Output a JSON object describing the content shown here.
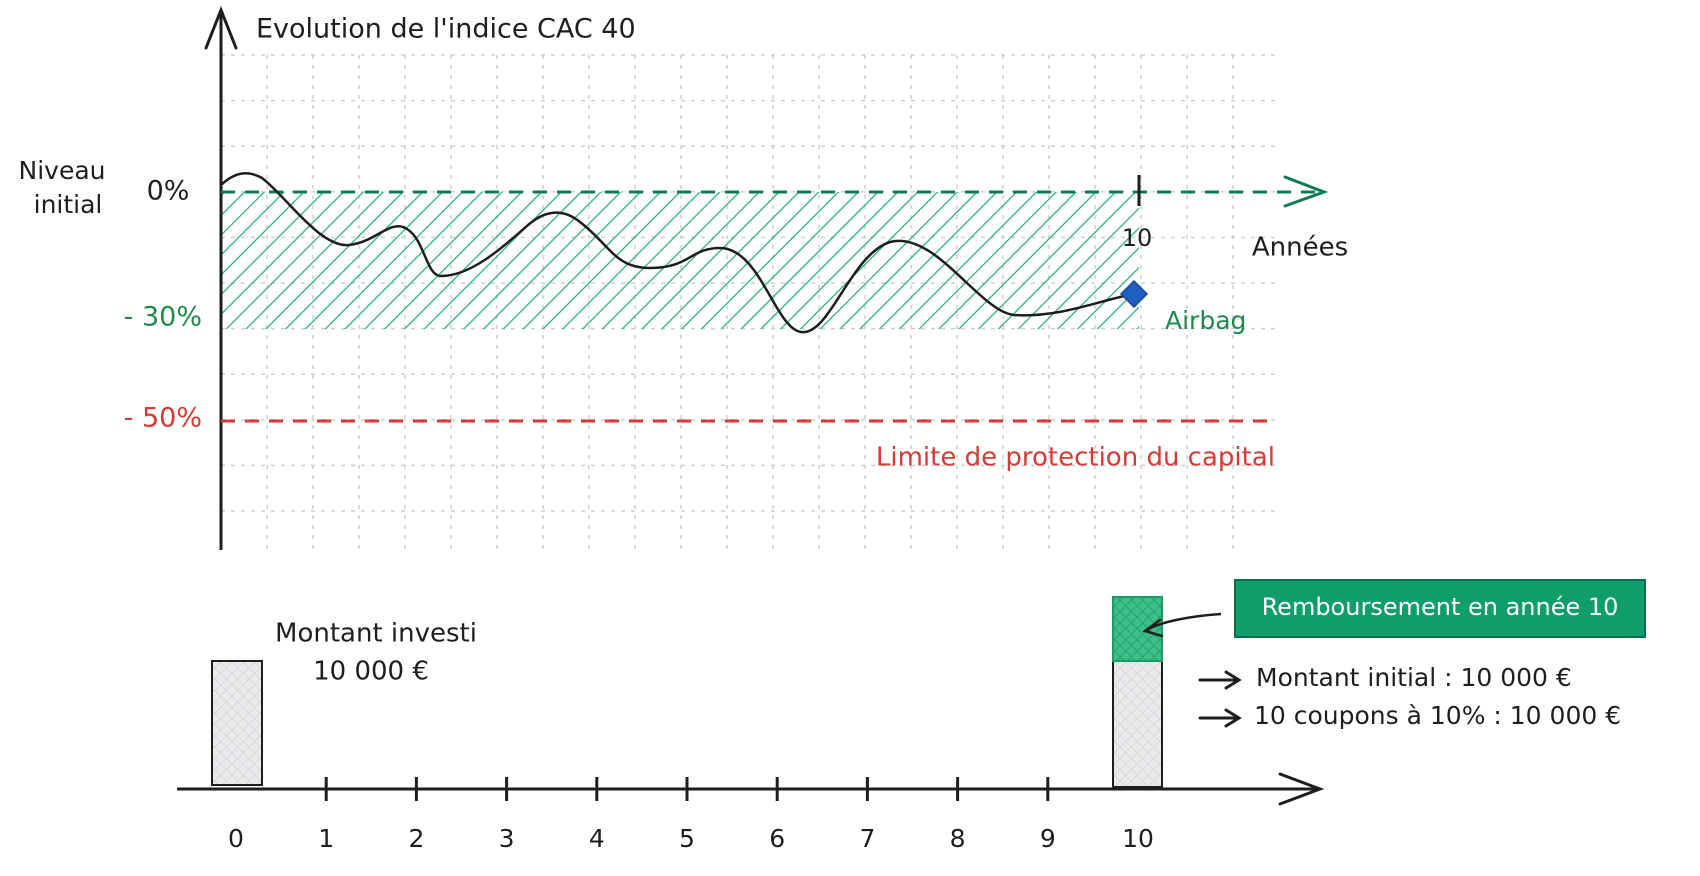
{
  "top_chart": {
    "title": "Evolution de l'indice CAC 40",
    "y_label_lines": [
      "Niveau",
      "initial"
    ],
    "level_initial": "0%",
    "level_airbag": "- 30%",
    "level_limit": "- 50%",
    "x_label": "Années",
    "year_marker": "10",
    "airbag_label": "Airbag",
    "limit_label": "Limite de protection du capital"
  },
  "bottom_chart": {
    "invested_label": "Montant investi",
    "invested_amount": "10 000 €",
    "callout": "Remboursement en année 10",
    "repayment_lines": [
      "Montant initial : 10 000 €",
      "10 coupons à 10% : 10 000 €"
    ],
    "years": [
      "0",
      "1",
      "2",
      "3",
      "4",
      "5",
      "6",
      "7",
      "8",
      "9",
      "10"
    ]
  }
}
